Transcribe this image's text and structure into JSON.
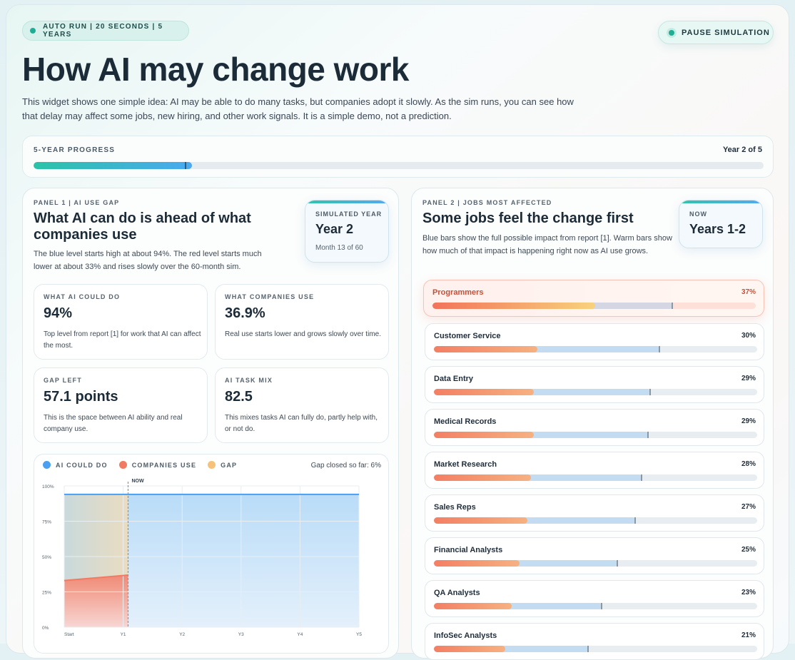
{
  "header": {
    "badge": "AUTO RUN | 20 SECONDS | 5 YEARS",
    "pause_label": "PAUSE SIMULATION",
    "title": "How AI may change work",
    "intro": "This widget shows one simple idea: AI may be able to do many tasks, but companies adopt it slowly. As the sim runs, you can see how that delay may affect some jobs, new hiring, and other work signals. It is a simple demo, not a prediction."
  },
  "progress": {
    "label": "5-YEAR PROGRESS",
    "year_text": "Year 2 of 5",
    "fraction": 0.217
  },
  "panel1": {
    "eyebrow": "PANEL 1 | AI USE GAP",
    "title": "What AI can do is ahead of what companies use",
    "desc": "The blue level starts high at about 94%. The red level starts much lower at about 33% and rises slowly over the 60-month sim.",
    "sim_label": "SIMULATED YEAR",
    "sim_value": "Year 2",
    "sim_sub": "Month 13 of 60",
    "stats": [
      {
        "label": "WHAT AI COULD DO",
        "value": "94%",
        "desc": "Top level from report [1] for work that AI can affect the most."
      },
      {
        "label": "WHAT COMPANIES USE",
        "value": "36.9%",
        "desc": "Real use starts lower and grows slowly over time."
      },
      {
        "label": "GAP LEFT",
        "value": "57.1 points",
        "desc": "This is the space between AI ability and real company use."
      },
      {
        "label": "AI TASK MIX",
        "value": "82.5",
        "desc": "This mixes tasks AI can fully do, partly help with, or not do."
      }
    ],
    "legend": [
      "AI COULD DO",
      "COMPANIES USE",
      "GAP"
    ],
    "gap_closed": "Gap closed so far: 6%",
    "now_label": "NOW"
  },
  "chart_data": {
    "type": "area",
    "x": [
      0,
      12,
      24,
      36,
      48,
      60
    ],
    "x_tick_labels": [
      "Start",
      "Y1",
      "Y2",
      "Y3",
      "Y4",
      "Y5"
    ],
    "y_tick_labels": [
      "0%",
      "25%",
      "50%",
      "75%",
      "100%"
    ],
    "ylim": [
      0,
      100
    ],
    "now_month": 13,
    "series": [
      {
        "name": "AI COULD DO",
        "x": [
          0,
          60
        ],
        "values": [
          94,
          94
        ]
      },
      {
        "name": "COMPANIES USE",
        "x": [
          0,
          13
        ],
        "values": [
          33,
          36.9
        ]
      }
    ],
    "grid": true,
    "legend_position": "top-left"
  },
  "panel2": {
    "eyebrow": "PANEL 2 | JOBS MOST AFFECTED",
    "title": "Some jobs feel the change first",
    "desc": "Blue bars show the full possible impact from report [1]. Warm bars show how much of that impact is happening right now as AI use grows.",
    "now_label": "NOW",
    "now_value": "Years 1-2",
    "jobs": [
      {
        "name": "Programmers",
        "pct": "37%",
        "now": 0.504,
        "full": 0.745,
        "highlight": true
      },
      {
        "name": "Customer Service",
        "pct": "30%",
        "now": 0.32,
        "full": 0.7
      },
      {
        "name": "Data Entry",
        "pct": "29%",
        "now": 0.31,
        "full": 0.67
      },
      {
        "name": "Medical Records",
        "pct": "29%",
        "now": 0.31,
        "full": 0.665
      },
      {
        "name": "Market Research",
        "pct": "28%",
        "now": 0.3,
        "full": 0.645
      },
      {
        "name": "Sales Reps",
        "pct": "27%",
        "now": 0.29,
        "full": 0.625
      },
      {
        "name": "Financial Analysts",
        "pct": "25%",
        "now": 0.265,
        "full": 0.57
      },
      {
        "name": "QA Analysts",
        "pct": "23%",
        "now": 0.24,
        "full": 0.52
      },
      {
        "name": "InfoSec Analysts",
        "pct": "21%",
        "now": 0.22,
        "full": 0.48
      }
    ]
  },
  "colors": {
    "accent_teal": "#1fae94",
    "ai_blue": "#4a9ff0",
    "use_red": "#f07a62",
    "gap_yellow": "#f6c27a"
  }
}
